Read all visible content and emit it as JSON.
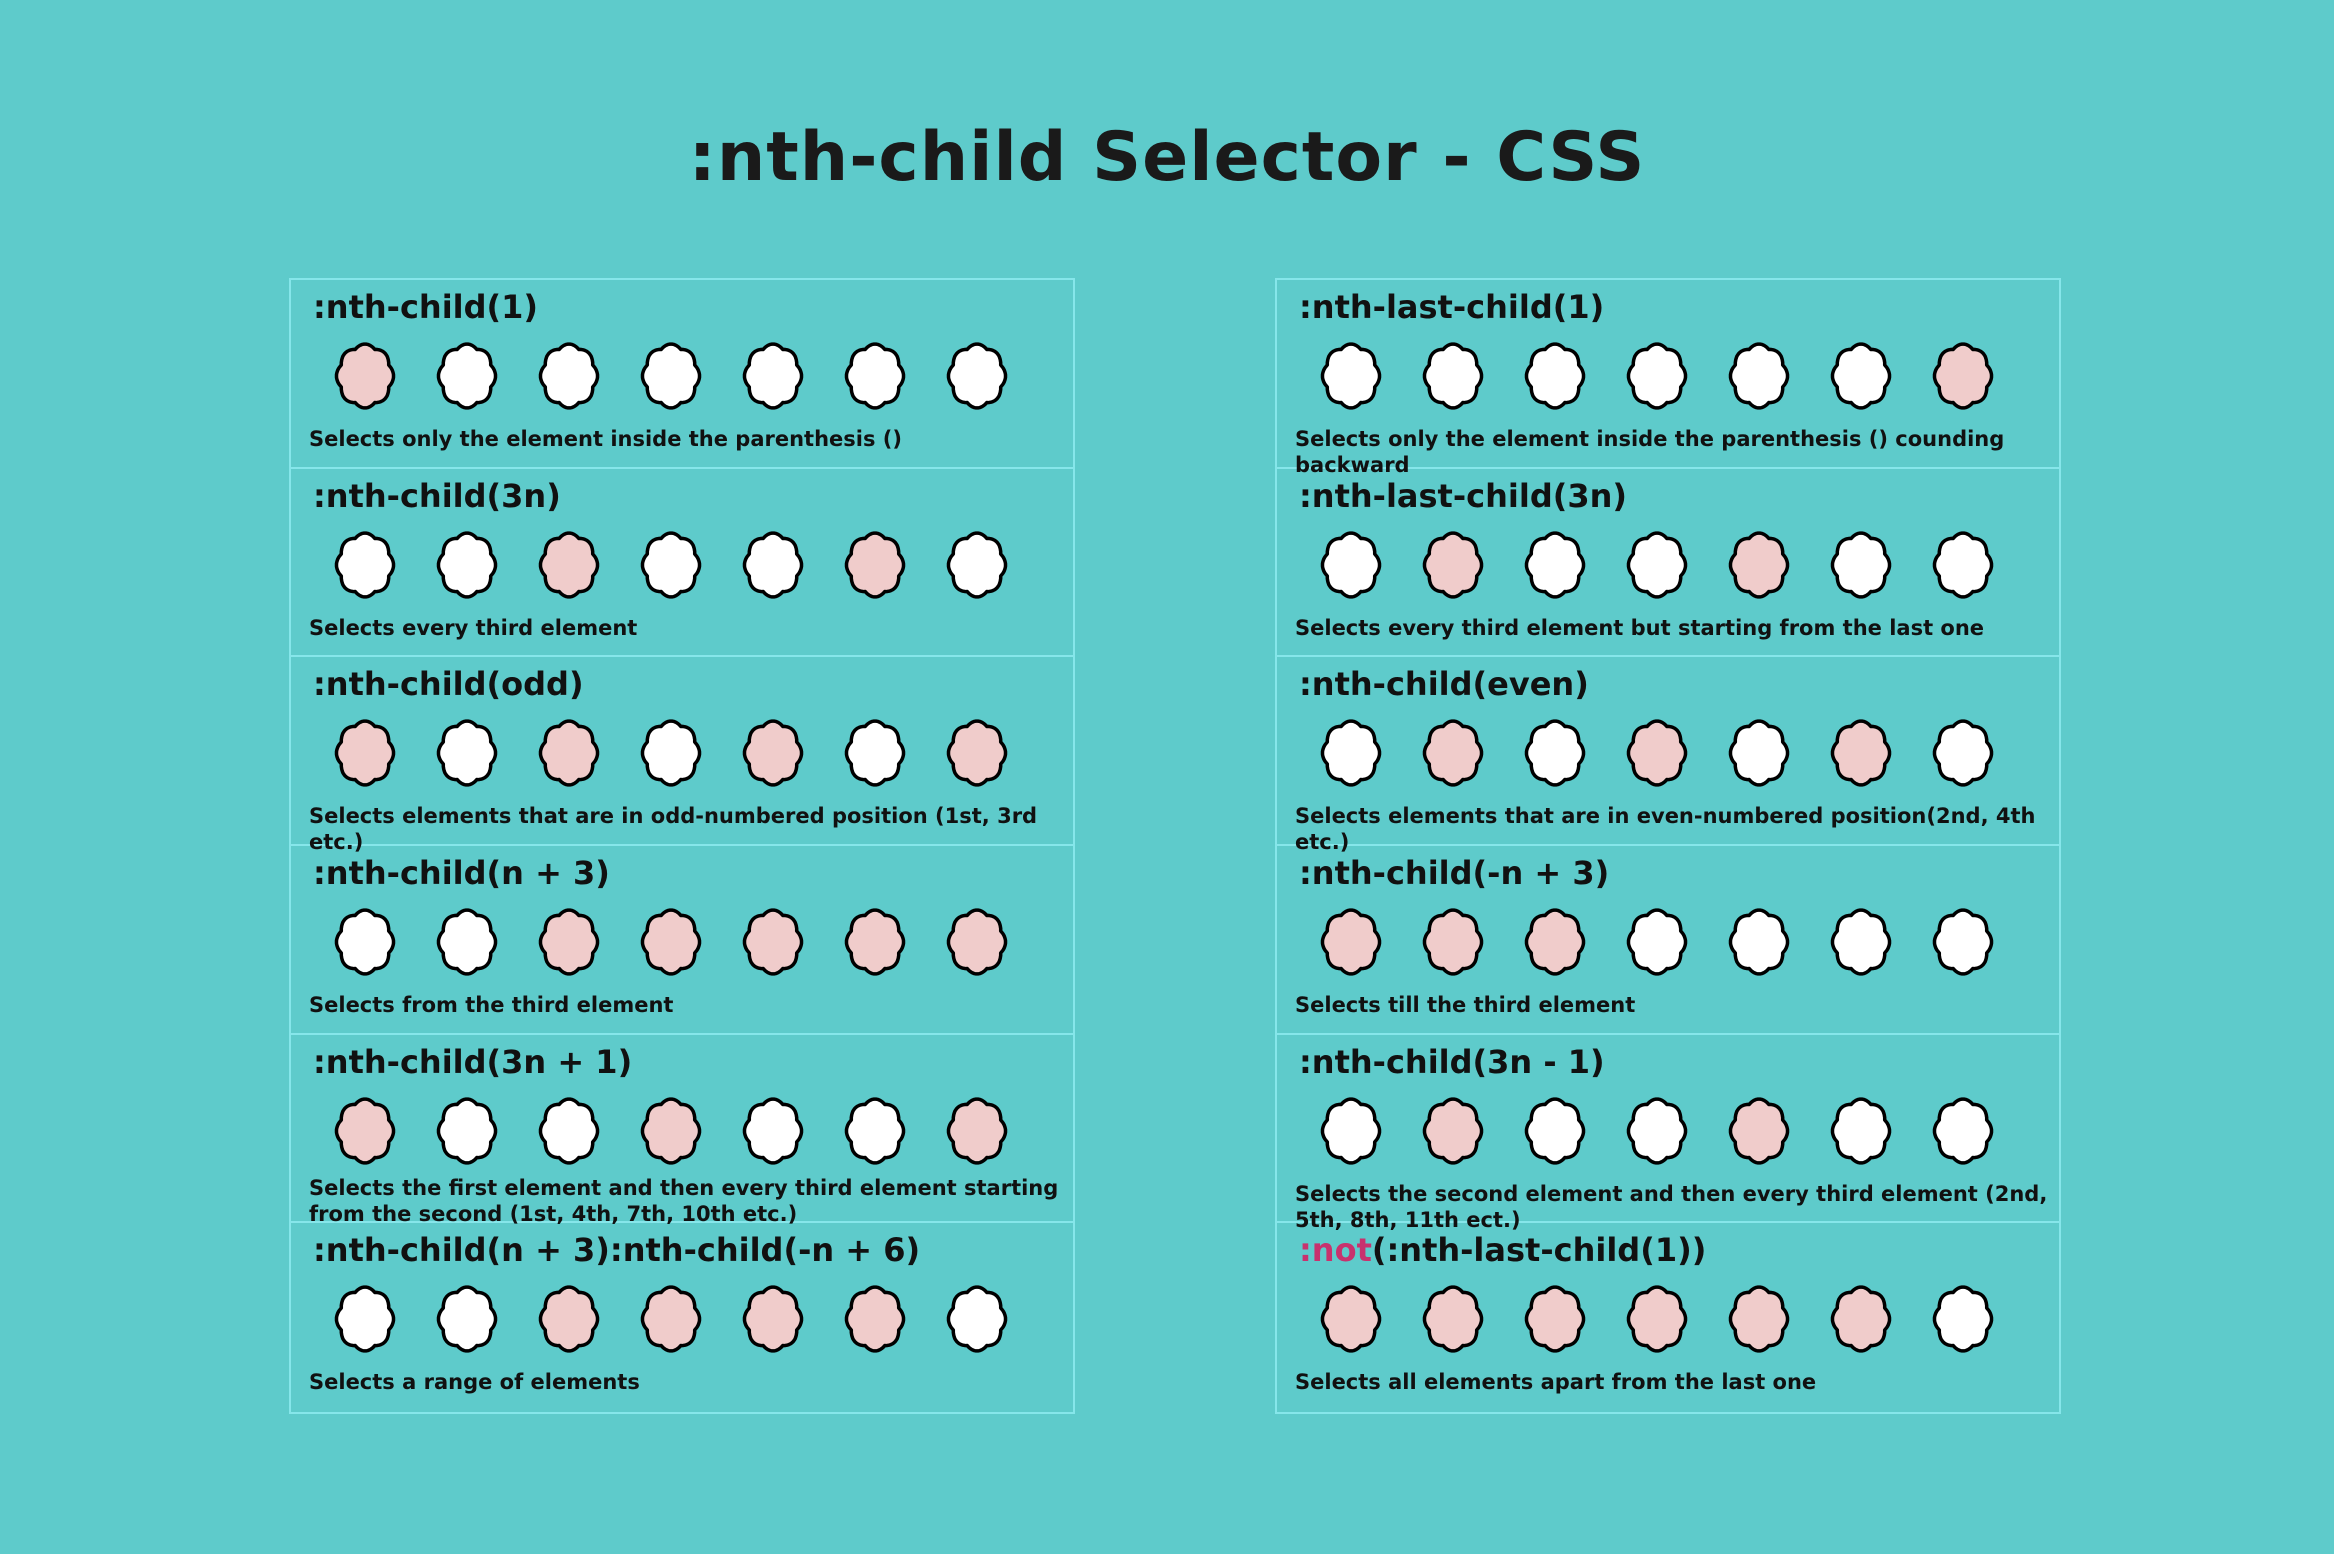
{
  "title": ":nth-child Selector - CSS",
  "colors": {
    "background": "#5ecbcb",
    "selected": "#f0cccb",
    "unselected": "#ffffff",
    "not_keyword": "#c8326e",
    "border": "#86e6ea"
  },
  "left": [
    {
      "heading": ":nth-child(1)",
      "pattern": [
        1,
        0,
        0,
        0,
        0,
        0,
        0
      ],
      "desc": "Selects only the element inside the parenthesis ()"
    },
    {
      "heading": ":nth-child(3n)",
      "pattern": [
        0,
        0,
        1,
        0,
        0,
        1,
        0
      ],
      "desc": "Selects every third element"
    },
    {
      "heading": ":nth-child(odd)",
      "pattern": [
        1,
        0,
        1,
        0,
        1,
        0,
        1
      ],
      "desc": "Selects elements that are in odd-numbered position (1st, 3rd etc.)"
    },
    {
      "heading": ":nth-child(n + 3)",
      "pattern": [
        0,
        0,
        1,
        1,
        1,
        1,
        1
      ],
      "desc": "Selects from the third element"
    },
    {
      "heading": ":nth-child(3n + 1)",
      "pattern": [
        1,
        0,
        0,
        1,
        0,
        0,
        1
      ],
      "desc": "Selects the first element and then every third element starting from the second (1st, 4th, 7th, 10th etc.)"
    },
    {
      "heading": ":nth-child(n + 3):nth-child(-n + 6)",
      "pattern": [
        0,
        0,
        1,
        1,
        1,
        1,
        0
      ],
      "desc": "Selects a range of elements"
    }
  ],
  "right": [
    {
      "heading": ":nth-last-child(1)",
      "pattern": [
        0,
        0,
        0,
        0,
        0,
        0,
        1
      ],
      "desc": "Selects only the element inside the parenthesis () counding backward"
    },
    {
      "heading": ":nth-last-child(3n)",
      "pattern": [
        0,
        1,
        0,
        0,
        1,
        0,
        0
      ],
      "desc": "Selects every third element but starting from the last one"
    },
    {
      "heading": ":nth-child(even)",
      "pattern": [
        0,
        1,
        0,
        1,
        0,
        1,
        0
      ],
      "desc": "Selects elements that are in even-numbered position(2nd, 4th etc.)"
    },
    {
      "heading": ":nth-child(-n + 3)",
      "pattern": [
        1,
        1,
        1,
        0,
        0,
        0,
        0
      ],
      "desc": "Selects till the third element"
    },
    {
      "heading": ":nth-child(3n - 1)",
      "pattern": [
        0,
        1,
        0,
        0,
        1,
        0,
        0
      ],
      "desc": "Selects the second element and then every third element (2nd, 5th, 8th, 11th ect.)"
    },
    {
      "heading_prefix": ":not",
      "heading": "(:nth-last-child(1))",
      "pattern": [
        1,
        1,
        1,
        1,
        1,
        1,
        0
      ],
      "desc": "Selects all elements apart from the last one"
    }
  ]
}
